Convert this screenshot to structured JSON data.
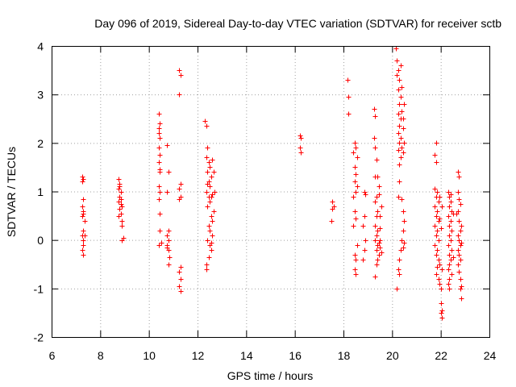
{
  "chart_data": {
    "type": "scatter",
    "title": "Day 096 of 2019, Sidereal Day-to-day VTEC variation (SDTVAR) for receiver sctb",
    "xlabel": "GPS time / hours",
    "ylabel": "SDTVAR / TECUs",
    "xlim": [
      6,
      24
    ],
    "ylim": [
      -2,
      4
    ],
    "xticks": [
      "6",
      "8",
      "10",
      "12",
      "14",
      "16",
      "18",
      "20",
      "22",
      "24"
    ],
    "yticks": [
      "-2",
      "-1",
      "0",
      "1",
      "2",
      "3",
      "4"
    ],
    "grid": true,
    "marker": "+",
    "colors": {
      "points": "#ff0000",
      "grid": "#a0a0a0",
      "axis": "#000000"
    },
    "series": [
      {
        "name": "SDTVAR",
        "points": [
          [
            7.25,
            1.3
          ],
          [
            7.25,
            1.2
          ],
          [
            7.3,
            0.85
          ],
          [
            7.25,
            0.7
          ],
          [
            7.3,
            0.6
          ],
          [
            7.25,
            0.5
          ],
          [
            7.35,
            0.4
          ],
          [
            7.3,
            0.2
          ],
          [
            7.25,
            0.1
          ],
          [
            7.3,
            0.0
          ],
          [
            7.3,
            -0.1
          ],
          [
            7.25,
            -0.2
          ],
          [
            7.3,
            -0.3
          ],
          [
            7.3,
            1.25
          ],
          [
            7.3,
            0.55
          ],
          [
            7.35,
            0.1
          ],
          [
            8.75,
            1.25
          ],
          [
            8.8,
            1.15
          ],
          [
            8.75,
            1.05
          ],
          [
            8.85,
            1.0
          ],
          [
            8.8,
            0.9
          ],
          [
            8.75,
            0.8
          ],
          [
            8.85,
            0.75
          ],
          [
            8.9,
            0.7
          ],
          [
            8.8,
            0.65
          ],
          [
            8.85,
            0.55
          ],
          [
            8.75,
            0.5
          ],
          [
            8.9,
            0.4
          ],
          [
            8.9,
            0.3
          ],
          [
            8.95,
            0.05
          ],
          [
            8.9,
            0.0
          ],
          [
            8.8,
            1.1
          ],
          [
            8.85,
            0.85
          ],
          [
            10.4,
            2.6
          ],
          [
            10.45,
            2.4
          ],
          [
            10.4,
            2.3
          ],
          [
            10.45,
            2.1
          ],
          [
            10.4,
            1.9
          ],
          [
            10.45,
            1.75
          ],
          [
            10.4,
            1.6
          ],
          [
            10.45,
            1.4
          ],
          [
            10.4,
            1.1
          ],
          [
            10.45,
            1.0
          ],
          [
            10.4,
            0.85
          ],
          [
            10.45,
            0.55
          ],
          [
            10.45,
            0.2
          ],
          [
            10.5,
            -0.05
          ],
          [
            10.4,
            -0.1
          ],
          [
            10.4,
            2.2
          ],
          [
            10.45,
            1.45
          ],
          [
            10.75,
            1.95
          ],
          [
            10.8,
            1.4
          ],
          [
            10.75,
            1.0
          ],
          [
            10.8,
            0.2
          ],
          [
            10.75,
            0.1
          ],
          [
            10.8,
            0.0
          ],
          [
            10.75,
            -0.1
          ],
          [
            10.8,
            -0.2
          ],
          [
            10.85,
            -0.35
          ],
          [
            10.8,
            -0.5
          ],
          [
            10.75,
            -0.15
          ],
          [
            11.25,
            3.5
          ],
          [
            11.3,
            3.4
          ],
          [
            11.25,
            3.0
          ],
          [
            11.3,
            1.15
          ],
          [
            11.25,
            1.05
          ],
          [
            11.3,
            0.9
          ],
          [
            11.25,
            0.85
          ],
          [
            11.3,
            -0.55
          ],
          [
            11.25,
            -0.65
          ],
          [
            11.3,
            -0.8
          ],
          [
            11.25,
            -0.95
          ],
          [
            11.3,
            -1.05
          ],
          [
            12.3,
            2.45
          ],
          [
            12.35,
            2.35
          ],
          [
            12.4,
            1.9
          ],
          [
            12.35,
            1.7
          ],
          [
            12.45,
            1.6
          ],
          [
            12.5,
            1.5
          ],
          [
            12.4,
            1.4
          ],
          [
            12.55,
            1.3
          ],
          [
            12.45,
            1.2
          ],
          [
            12.5,
            1.1
          ],
          [
            12.35,
            1.0
          ],
          [
            12.6,
            0.95
          ],
          [
            12.45,
            0.9
          ],
          [
            12.5,
            0.8
          ],
          [
            12.4,
            0.7
          ],
          [
            12.55,
            0.5
          ],
          [
            12.45,
            0.3
          ],
          [
            12.5,
            0.2
          ],
          [
            12.6,
            0.1
          ],
          [
            12.4,
            0.0
          ],
          [
            12.5,
            -0.1
          ],
          [
            12.55,
            -0.2
          ],
          [
            12.45,
            -0.35
          ],
          [
            12.35,
            -0.5
          ],
          [
            12.35,
            -0.6
          ],
          [
            12.6,
            1.65
          ],
          [
            12.65,
            1.4
          ],
          [
            12.55,
            0.9
          ],
          [
            12.6,
            0.4
          ],
          [
            12.7,
            1.0
          ],
          [
            12.65,
            0.6
          ],
          [
            12.55,
            -0.05
          ],
          [
            12.4,
            1.15
          ],
          [
            16.2,
            2.15
          ],
          [
            16.25,
            2.1
          ],
          [
            16.2,
            1.9
          ],
          [
            16.25,
            1.8
          ],
          [
            17.55,
            0.8
          ],
          [
            17.6,
            0.7
          ],
          [
            17.55,
            0.65
          ],
          [
            17.5,
            0.4
          ],
          [
            18.15,
            3.3
          ],
          [
            18.2,
            2.95
          ],
          [
            18.2,
            2.6
          ],
          [
            18.45,
            2.0
          ],
          [
            18.5,
            1.9
          ],
          [
            18.4,
            1.8
          ],
          [
            18.55,
            1.7
          ],
          [
            18.45,
            1.5
          ],
          [
            18.5,
            1.35
          ],
          [
            18.45,
            1.2
          ],
          [
            18.5,
            1.0
          ],
          [
            18.4,
            0.9
          ],
          [
            18.45,
            0.6
          ],
          [
            18.5,
            0.45
          ],
          [
            18.4,
            0.3
          ],
          [
            18.45,
            -0.3
          ],
          [
            18.5,
            -0.4
          ],
          [
            18.45,
            -0.6
          ],
          [
            18.5,
            -0.7
          ],
          [
            18.55,
            1.1
          ],
          [
            18.55,
            -0.1
          ],
          [
            18.85,
            1.0
          ],
          [
            18.9,
            0.95
          ],
          [
            18.85,
            0.5
          ],
          [
            18.8,
            0.3
          ],
          [
            18.9,
            0.0
          ],
          [
            18.85,
            -0.2
          ],
          [
            18.8,
            -0.4
          ],
          [
            19.25,
            2.7
          ],
          [
            19.3,
            2.55
          ],
          [
            19.25,
            2.1
          ],
          [
            19.3,
            1.9
          ],
          [
            19.35,
            1.65
          ],
          [
            19.3,
            1.3
          ],
          [
            19.35,
            0.9
          ],
          [
            19.3,
            0.8
          ],
          [
            19.4,
            0.6
          ],
          [
            19.35,
            0.5
          ],
          [
            19.3,
            0.3
          ],
          [
            19.4,
            0.2
          ],
          [
            19.35,
            0.1
          ],
          [
            19.3,
            0.0
          ],
          [
            19.45,
            -0.05
          ],
          [
            19.4,
            -0.1
          ],
          [
            19.35,
            -0.2
          ],
          [
            19.45,
            -0.3
          ],
          [
            19.4,
            -0.4
          ],
          [
            19.35,
            -0.5
          ],
          [
            19.3,
            -0.75
          ],
          [
            19.45,
            0.95
          ],
          [
            19.5,
            0.5
          ],
          [
            19.5,
            0.25
          ],
          [
            19.5,
            -0.15
          ],
          [
            19.55,
            -0.25
          ],
          [
            19.45,
            1.1
          ],
          [
            19.4,
            1.3
          ],
          [
            19.55,
            0.7
          ],
          [
            19.5,
            0.0
          ],
          [
            20.15,
            3.95
          ],
          [
            20.2,
            3.7
          ],
          [
            20.25,
            3.5
          ],
          [
            20.2,
            3.4
          ],
          [
            20.3,
            3.3
          ],
          [
            20.25,
            3.1
          ],
          [
            20.35,
            2.95
          ],
          [
            20.3,
            2.8
          ],
          [
            20.4,
            2.65
          ],
          [
            20.35,
            2.5
          ],
          [
            20.3,
            2.35
          ],
          [
            20.25,
            2.2
          ],
          [
            20.35,
            2.1
          ],
          [
            20.3,
            2.0
          ],
          [
            20.4,
            1.9
          ],
          [
            20.25,
            1.85
          ],
          [
            20.35,
            1.7
          ],
          [
            20.3,
            1.55
          ],
          [
            20.45,
            2.3
          ],
          [
            20.5,
            2.0
          ],
          [
            20.45,
            1.8
          ],
          [
            20.5,
            2.8
          ],
          [
            20.4,
            3.15
          ],
          [
            20.25,
            2.6
          ],
          [
            20.3,
            1.2
          ],
          [
            20.25,
            0.9
          ],
          [
            20.4,
            0.85
          ],
          [
            20.45,
            0.6
          ],
          [
            20.5,
            0.4
          ],
          [
            20.45,
            0.2
          ],
          [
            20.4,
            0.0
          ],
          [
            20.35,
            -0.2
          ],
          [
            20.3,
            -0.4
          ],
          [
            20.25,
            -0.6
          ],
          [
            20.3,
            -0.7
          ],
          [
            20.2,
            -1.0
          ],
          [
            20.45,
            -0.15
          ],
          [
            20.5,
            -0.05
          ],
          [
            20.35,
            3.6
          ],
          [
            20.45,
            2.5
          ],
          [
            21.8,
            2.0
          ],
          [
            21.75,
            1.75
          ],
          [
            21.8,
            1.6
          ],
          [
            21.75,
            1.05
          ],
          [
            21.85,
            1.0
          ],
          [
            21.8,
            0.9
          ],
          [
            21.9,
            0.8
          ],
          [
            21.75,
            0.7
          ],
          [
            21.85,
            0.6
          ],
          [
            21.8,
            0.5
          ],
          [
            21.9,
            0.4
          ],
          [
            21.75,
            0.3
          ],
          [
            21.85,
            0.2
          ],
          [
            21.8,
            0.1
          ],
          [
            21.9,
            0.0
          ],
          [
            21.75,
            -0.1
          ],
          [
            21.85,
            -0.2
          ],
          [
            21.8,
            -0.3
          ],
          [
            21.9,
            -0.4
          ],
          [
            21.85,
            -0.55
          ],
          [
            21.8,
            -0.7
          ],
          [
            21.9,
            -0.8
          ],
          [
            21.95,
            -0.9
          ],
          [
            22.0,
            -1.0
          ],
          [
            22.0,
            -1.3
          ],
          [
            22.05,
            -1.45
          ],
          [
            22.0,
            -1.5
          ],
          [
            22.05,
            -1.6
          ],
          [
            21.95,
            0.9
          ],
          [
            22.05,
            0.7
          ],
          [
            21.95,
            0.45
          ],
          [
            22.0,
            0.25
          ],
          [
            21.95,
            -0.5
          ],
          [
            22.05,
            -0.6
          ],
          [
            22.3,
            1.0
          ],
          [
            22.35,
            0.9
          ],
          [
            22.4,
            0.8
          ],
          [
            22.35,
            0.7
          ],
          [
            22.45,
            0.6
          ],
          [
            22.3,
            0.5
          ],
          [
            22.4,
            0.4
          ],
          [
            22.35,
            0.3
          ],
          [
            22.45,
            0.2
          ],
          [
            22.35,
            0.1
          ],
          [
            22.4,
            0.0
          ],
          [
            22.3,
            -0.1
          ],
          [
            22.45,
            -0.2
          ],
          [
            22.35,
            -0.3
          ],
          [
            22.4,
            -0.4
          ],
          [
            22.35,
            -0.5
          ],
          [
            22.3,
            -0.6
          ],
          [
            22.45,
            -0.7
          ],
          [
            22.35,
            -0.8
          ],
          [
            22.3,
            -0.9
          ],
          [
            22.35,
            -1.0
          ],
          [
            22.4,
            0.95
          ],
          [
            22.5,
            0.55
          ],
          [
            22.5,
            -0.35
          ],
          [
            22.7,
            1.4
          ],
          [
            22.75,
            1.3
          ],
          [
            22.7,
            1.0
          ],
          [
            22.75,
            0.85
          ],
          [
            22.8,
            0.75
          ],
          [
            22.7,
            0.6
          ],
          [
            22.75,
            0.4
          ],
          [
            22.8,
            0.2
          ],
          [
            22.7,
            0.1
          ],
          [
            22.75,
            0.0
          ],
          [
            22.8,
            -0.1
          ],
          [
            22.7,
            -0.2
          ],
          [
            22.75,
            -0.3
          ],
          [
            22.8,
            -0.4
          ],
          [
            22.7,
            -0.5
          ],
          [
            22.75,
            -0.65
          ],
          [
            22.8,
            -0.8
          ],
          [
            22.85,
            -0.95
          ],
          [
            22.8,
            -1.0
          ],
          [
            22.85,
            -1.2
          ],
          [
            22.85,
            0.3
          ],
          [
            22.85,
            -0.05
          ],
          [
            22.65,
            0.55
          ]
        ]
      }
    ]
  }
}
